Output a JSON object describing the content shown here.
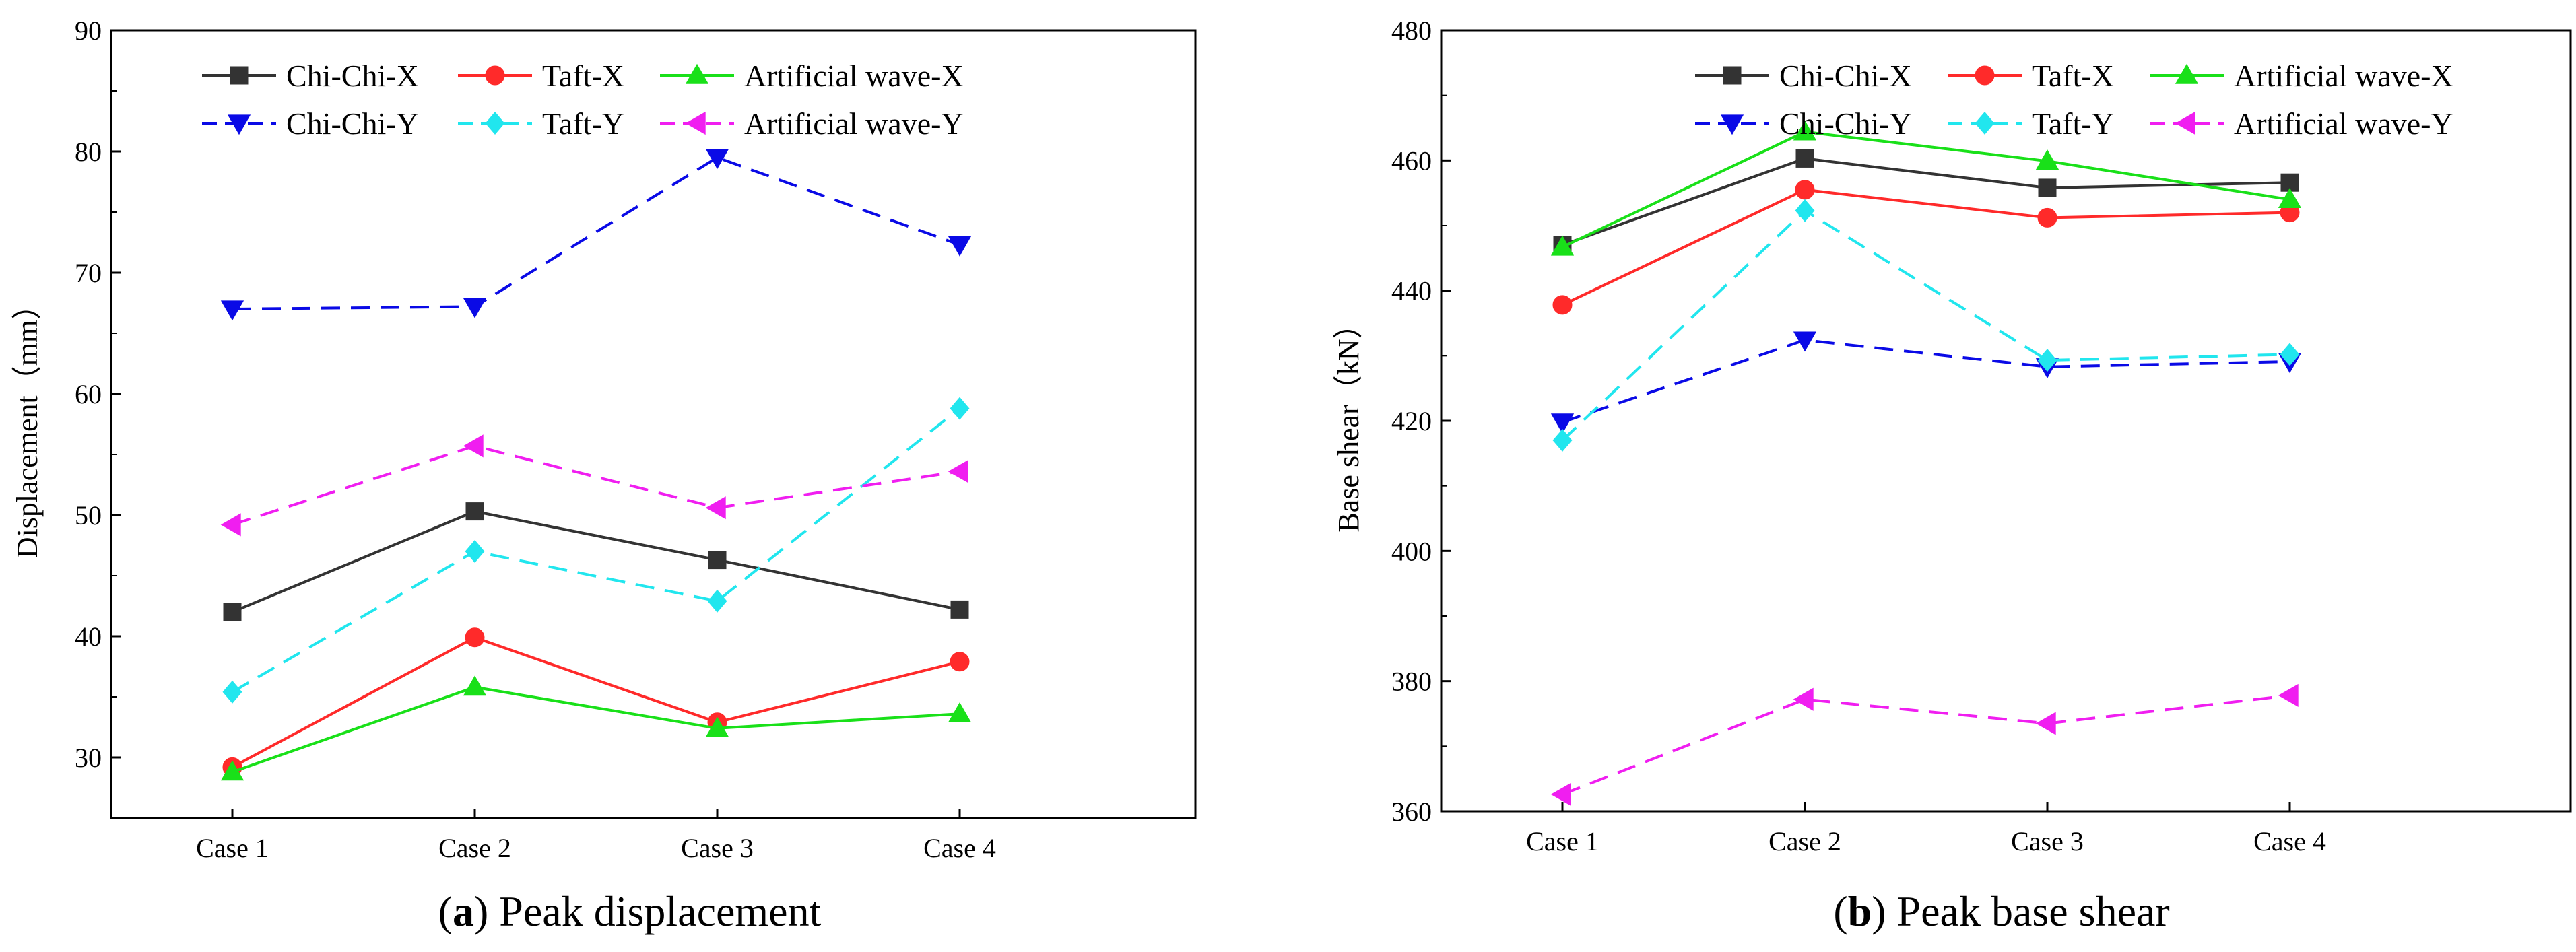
{
  "chart_data": [
    {
      "type": "line",
      "panel_label": "a",
      "title": "Peak displacement",
      "xlabel": "",
      "ylabel": "Displacement（mm）",
      "categories": [
        "Case 1",
        "Case 2",
        "Case 3",
        "Case 4"
      ],
      "ylim": [
        25,
        90
      ],
      "yticks": [
        30,
        40,
        50,
        60,
        70,
        80,
        90
      ],
      "legend_position": "top",
      "series": [
        {
          "name": "Chi-Chi-X",
          "values": [
            42.0,
            50.3,
            46.3,
            42.2
          ],
          "color": "#333333",
          "marker": "square",
          "dash": "solid"
        },
        {
          "name": "Taft-X",
          "values": [
            29.2,
            39.9,
            32.9,
            37.9
          ],
          "color": "#ff2a2a",
          "marker": "circle",
          "dash": "solid"
        },
        {
          "name": "Artificial wave-X",
          "values": [
            28.8,
            35.8,
            32.4,
            33.6
          ],
          "color": "#19e019",
          "marker": "triangle-up",
          "dash": "solid"
        },
        {
          "name": "Chi-Chi-Y",
          "values": [
            67.0,
            67.2,
            79.5,
            72.3
          ],
          "color": "#0a0ae6",
          "marker": "triangle-down",
          "dash": "dashed"
        },
        {
          "name": "Taft-Y",
          "values": [
            35.4,
            47.0,
            42.9,
            58.8
          ],
          "color": "#21e6ee",
          "marker": "diamond",
          "dash": "dashed"
        },
        {
          "name": "Artificial wave-Y",
          "values": [
            49.2,
            55.7,
            50.6,
            53.6
          ],
          "color": "#f01ef0",
          "marker": "triangle-left",
          "dash": "dashed"
        }
      ]
    },
    {
      "type": "line",
      "panel_label": "b",
      "title": "Peak base shear",
      "xlabel": "",
      "ylabel": "Base shear（kN）",
      "categories": [
        "Case 1",
        "Case 2",
        "Case 3",
        "Case 4"
      ],
      "ylim": [
        360,
        480
      ],
      "yticks": [
        360,
        380,
        400,
        420,
        440,
        460,
        480
      ],
      "legend_position": "top",
      "series": [
        {
          "name": "Chi-Chi-X",
          "values": [
            447.0,
            460.3,
            455.8,
            456.6
          ],
          "color": "#333333",
          "marker": "square",
          "dash": "solid"
        },
        {
          "name": "Taft-X",
          "values": [
            437.8,
            455.5,
            451.2,
            452.0
          ],
          "color": "#ff2a2a",
          "marker": "circle",
          "dash": "solid"
        },
        {
          "name": "Artificial wave-X",
          "values": [
            446.7,
            464.4,
            459.9,
            454.0
          ],
          "color": "#19e019",
          "marker": "triangle-up",
          "dash": "solid"
        },
        {
          "name": "Chi-Chi-Y",
          "values": [
            419.8,
            432.4,
            428.3,
            429.1
          ],
          "color": "#0a0ae6",
          "marker": "triangle-down",
          "dash": "dashed"
        },
        {
          "name": "Taft-Y",
          "values": [
            417.0,
            452.3,
            429.3,
            430.2
          ],
          "color": "#21e6ee",
          "marker": "diamond",
          "dash": "dashed"
        },
        {
          "name": "Artificial wave-Y",
          "values": [
            362.6,
            377.2,
            373.5,
            377.8
          ],
          "color": "#f01ef0",
          "marker": "triangle-left",
          "dash": "dashed"
        }
      ]
    }
  ]
}
